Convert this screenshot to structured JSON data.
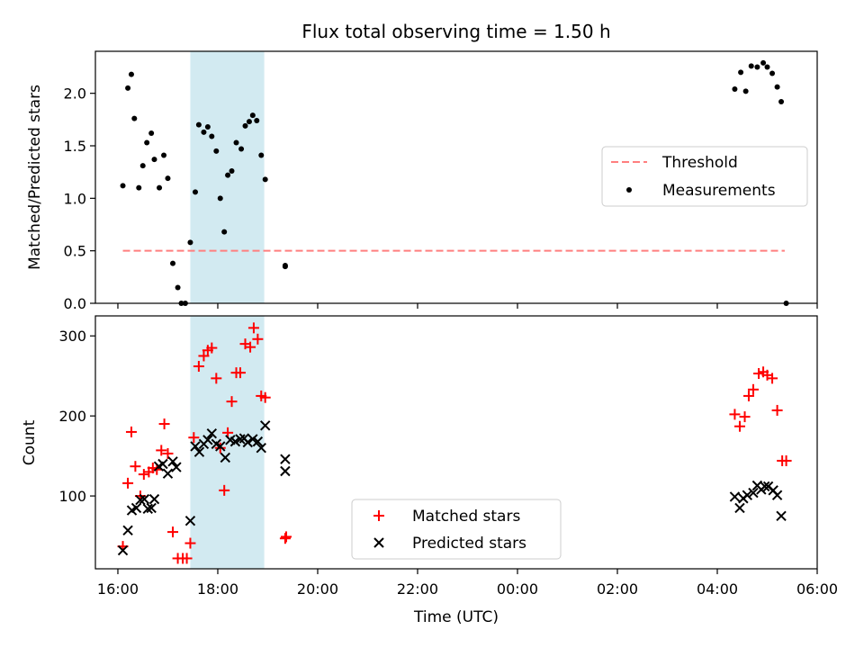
{
  "title": "Flux total observing time = 1.50 h",
  "xaxis": {
    "label": "Time (UTC)",
    "range_hours": [
      15.55,
      30.0
    ],
    "ticks": [
      {
        "h": 16,
        "label": "16:00"
      },
      {
        "h": 18,
        "label": "18:00"
      },
      {
        "h": 20,
        "label": "20:00"
      },
      {
        "h": 22,
        "label": "22:00"
      },
      {
        "h": 24,
        "label": "00:00"
      },
      {
        "h": 26,
        "label": "02:00"
      },
      {
        "h": 28,
        "label": "04:00"
      },
      {
        "h": 30,
        "label": "06:00"
      }
    ]
  },
  "colors": {
    "threshold": "#ff7f7f",
    "measurements": "#000000",
    "matched": "#ff0000",
    "predicted": "#000000",
    "span": "#add8e6"
  },
  "chart_data": [
    {
      "type": "scatter",
      "ylabel": "Matched/Predicted stars",
      "ylim": [
        0,
        2.4
      ],
      "yticks": [
        0.0,
        0.5,
        1.0,
        1.5,
        2.0
      ],
      "ytick_labels": [
        "0.0",
        "0.5",
        "1.0",
        "1.5",
        "2.0"
      ],
      "highlight_span_hours": [
        17.45,
        18.93
      ],
      "threshold": {
        "name": "Threshold",
        "y": 0.5,
        "x": [
          16.1,
          29.35
        ]
      },
      "legend": {
        "position": "center-right",
        "entries": [
          "Threshold",
          "Measurements"
        ]
      },
      "series": [
        {
          "name": "Measurements",
          "marker": "dot",
          "points": [
            [
              16.1,
              1.12
            ],
            [
              16.2,
              2.05
            ],
            [
              16.27,
              2.18
            ],
            [
              16.33,
              1.76
            ],
            [
              16.42,
              1.1
            ],
            [
              16.5,
              1.31
            ],
            [
              16.58,
              1.53
            ],
            [
              16.67,
              1.62
            ],
            [
              16.73,
              1.37
            ],
            [
              16.83,
              1.1
            ],
            [
              16.92,
              1.41
            ],
            [
              17.0,
              1.19
            ],
            [
              17.1,
              0.38
            ],
            [
              17.2,
              0.15
            ],
            [
              17.27,
              0.0
            ],
            [
              17.35,
              0.0
            ],
            [
              17.45,
              0.58
            ],
            [
              17.55,
              1.06
            ],
            [
              17.62,
              1.7
            ],
            [
              17.72,
              1.63
            ],
            [
              17.8,
              1.68
            ],
            [
              17.88,
              1.59
            ],
            [
              17.97,
              1.45
            ],
            [
              18.05,
              1.0
            ],
            [
              18.13,
              0.68
            ],
            [
              18.2,
              1.22
            ],
            [
              18.28,
              1.26
            ],
            [
              18.37,
              1.53
            ],
            [
              18.47,
              1.47
            ],
            [
              18.55,
              1.69
            ],
            [
              18.63,
              1.73
            ],
            [
              18.7,
              1.79
            ],
            [
              18.78,
              1.74
            ],
            [
              18.87,
              1.41
            ],
            [
              18.95,
              1.18
            ],
            [
              19.35,
              0.35
            ],
            [
              19.35,
              0.36
            ],
            [
              28.35,
              2.04
            ],
            [
              28.47,
              2.2
            ],
            [
              28.57,
              2.02
            ],
            [
              28.68,
              2.26
            ],
            [
              28.8,
              2.25
            ],
            [
              28.92,
              2.29
            ],
            [
              29.0,
              2.25
            ],
            [
              29.1,
              2.19
            ],
            [
              29.2,
              2.06
            ],
            [
              29.28,
              1.92
            ],
            [
              29.38,
              0.0
            ]
          ]
        }
      ]
    },
    {
      "type": "scatter",
      "ylabel": "Count",
      "ylim": [
        9,
        325
      ],
      "yticks": [
        100,
        200,
        300
      ],
      "ytick_labels": [
        "100",
        "200",
        "300"
      ],
      "highlight_span_hours": [
        17.45,
        18.93
      ],
      "legend": {
        "position": "bottom-center",
        "entries": [
          "Matched stars",
          "Predicted stars"
        ]
      },
      "series": [
        {
          "name": "Matched stars",
          "marker": "plus",
          "points": [
            [
              16.1,
              37
            ],
            [
              16.2,
              116
            ],
            [
              16.27,
              180
            ],
            [
              16.35,
              137
            ],
            [
              16.45,
              100
            ],
            [
              16.52,
              127
            ],
            [
              16.62,
              130
            ],
            [
              16.7,
              135
            ],
            [
              16.78,
              133
            ],
            [
              16.87,
              157
            ],
            [
              16.93,
              190
            ],
            [
              17.0,
              153
            ],
            [
              17.1,
              55
            ],
            [
              17.2,
              22
            ],
            [
              17.3,
              22
            ],
            [
              17.38,
              22
            ],
            [
              17.45,
              41
            ],
            [
              17.52,
              173
            ],
            [
              17.62,
              262
            ],
            [
              17.72,
              275
            ],
            [
              17.8,
              282
            ],
            [
              17.88,
              285
            ],
            [
              17.97,
              247
            ],
            [
              18.05,
              160
            ],
            [
              18.13,
              107
            ],
            [
              18.2,
              179
            ],
            [
              18.28,
              218
            ],
            [
              18.37,
              254
            ],
            [
              18.45,
              254
            ],
            [
              18.55,
              290
            ],
            [
              18.65,
              286
            ],
            [
              18.72,
              310
            ],
            [
              18.8,
              296
            ],
            [
              18.87,
              225
            ],
            [
              18.95,
              223
            ],
            [
              19.35,
              47
            ],
            [
              19.37,
              49
            ],
            [
              28.35,
              202
            ],
            [
              28.45,
              187
            ],
            [
              28.55,
              199
            ],
            [
              28.63,
              225
            ],
            [
              28.72,
              233
            ],
            [
              28.83,
              253
            ],
            [
              28.92,
              255
            ],
            [
              29.0,
              251
            ],
            [
              29.1,
              247
            ],
            [
              29.2,
              207
            ],
            [
              29.3,
              144
            ],
            [
              29.38,
              144
            ]
          ]
        },
        {
          "name": "Predicted stars",
          "marker": "x",
          "points": [
            [
              16.1,
              32
            ],
            [
              16.2,
              57
            ],
            [
              16.28,
              82
            ],
            [
              16.37,
              85
            ],
            [
              16.45,
              95
            ],
            [
              16.53,
              96
            ],
            [
              16.6,
              84
            ],
            [
              16.67,
              85
            ],
            [
              16.73,
              96
            ],
            [
              16.82,
              137
            ],
            [
              16.9,
              140
            ],
            [
              17.0,
              128
            ],
            [
              17.1,
              143
            ],
            [
              17.17,
              136
            ],
            [
              17.45,
              69
            ],
            [
              17.55,
              162
            ],
            [
              17.63,
              155
            ],
            [
              17.72,
              165
            ],
            [
              17.8,
              170
            ],
            [
              17.88,
              178
            ],
            [
              17.97,
              165
            ],
            [
              18.05,
              162
            ],
            [
              18.15,
              148
            ],
            [
              18.25,
              170
            ],
            [
              18.35,
              168
            ],
            [
              18.45,
              171
            ],
            [
              18.53,
              172
            ],
            [
              18.6,
              167
            ],
            [
              18.7,
              171
            ],
            [
              18.8,
              168
            ],
            [
              18.87,
              160
            ],
            [
              18.95,
              188
            ],
            [
              19.35,
              146
            ],
            [
              19.35,
              131
            ],
            [
              28.35,
              99
            ],
            [
              28.45,
              85
            ],
            [
              28.52,
              97
            ],
            [
              28.6,
              101
            ],
            [
              28.72,
              104
            ],
            [
              28.8,
              113
            ],
            [
              28.88,
              108
            ],
            [
              28.95,
              112
            ],
            [
              29.02,
              112
            ],
            [
              29.12,
              107
            ],
            [
              29.2,
              101
            ],
            [
              29.28,
              75
            ]
          ]
        }
      ]
    }
  ]
}
